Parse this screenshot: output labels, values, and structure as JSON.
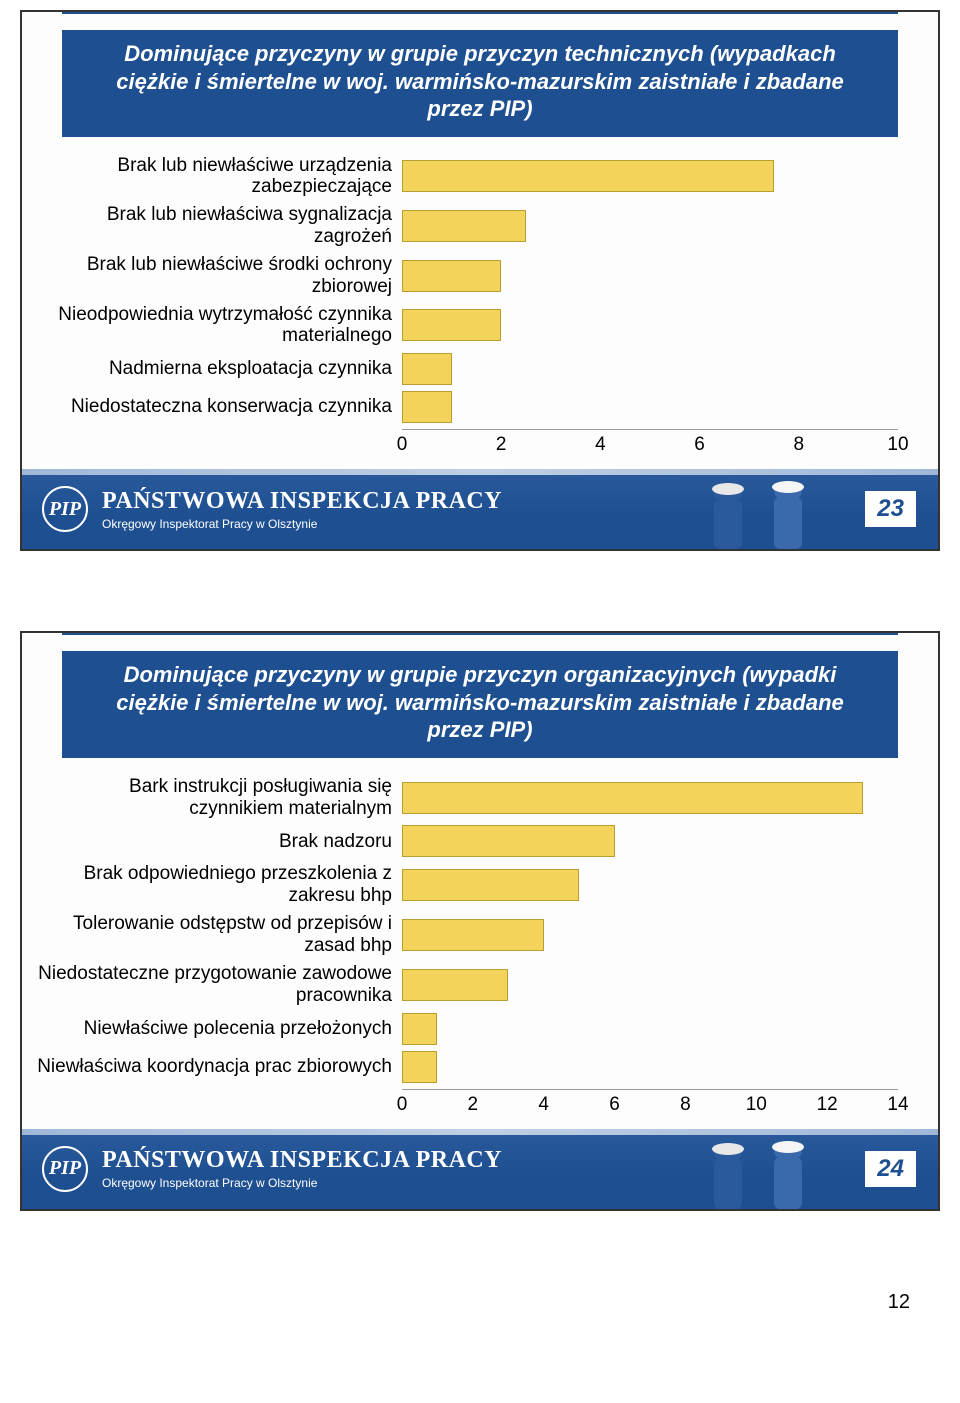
{
  "page_number": "12",
  "slide1": {
    "title": "Dominujące przyczyny w grupie przyczyn technicznych (wypadkach ciężkie i śmiertelne w woj. warmińsko-mazurskim zaistniałe i zbadane przez PIP)",
    "page_num": "23",
    "footer_main": "PAŃSTWOWA INSPEKCJA PRACY",
    "footer_sub": "Okręgowy Inspektorat Pracy w Olsztynie",
    "logo_text": "PIP",
    "chart": {
      "type": "bar-horizontal",
      "bar_color": "#f4d35a",
      "bar_border": "#b8a030",
      "xmin": 0,
      "xmax": 10,
      "xtick_step": 2,
      "ticks": [
        "0",
        "2",
        "4",
        "6",
        "8",
        "10"
      ],
      "categories": [
        {
          "label": "Brak lub niewłaściwe urządzenia zabezpieczające",
          "value": 7.5
        },
        {
          "label": "Brak lub niewłaściwa sygnalizacja zagrożeń",
          "value": 2.5
        },
        {
          "label": "Brak lub niewłaściwe środki ochrony zbiorowej",
          "value": 2.0
        },
        {
          "label": "Nieodpowiednia wytrzymałość czynnika materialnego",
          "value": 2.0
        },
        {
          "label": "Nadmierna eksploatacja czynnika",
          "value": 1.0
        },
        {
          "label": "Niedostateczna konserwacja czynnika",
          "value": 1.0
        }
      ]
    }
  },
  "slide2": {
    "title": "Dominujące przyczyny w grupie przyczyn organizacyjnych (wypadki ciężkie i śmiertelne w woj. warmińsko-mazurskim zaistniałe i zbadane przez PIP)",
    "page_num": "24",
    "footer_main": "PAŃSTWOWA INSPEKCJA PRACY",
    "footer_sub": "Okręgowy Inspektorat Pracy w Olsztynie",
    "logo_text": "PIP",
    "chart": {
      "type": "bar-horizontal",
      "bar_color": "#f4d35a",
      "bar_border": "#b8a030",
      "xmin": 0,
      "xmax": 14,
      "xtick_step": 2,
      "ticks": [
        "0",
        "2",
        "4",
        "6",
        "8",
        "10",
        "12",
        "14"
      ],
      "categories": [
        {
          "label": "Bark instrukcji posługiwania się czynnikiem materialnym",
          "value": 13.0
        },
        {
          "label": "Brak nadzoru",
          "value": 6.0
        },
        {
          "label": "Brak odpowiedniego przeszkolenia z zakresu bhp",
          "value": 5.0
        },
        {
          "label": "Tolerowanie odstępstw od przepisów i zasad bhp",
          "value": 4.0
        },
        {
          "label": "Niedostateczne przygotowanie zawodowe pracownika",
          "value": 3.0
        },
        {
          "label": "Niewłaściwe polecenia przełożonych",
          "value": 1.0
        },
        {
          "label": "Niewłaściwa koordynacja prac zbiorowych",
          "value": 1.0
        }
      ]
    }
  }
}
